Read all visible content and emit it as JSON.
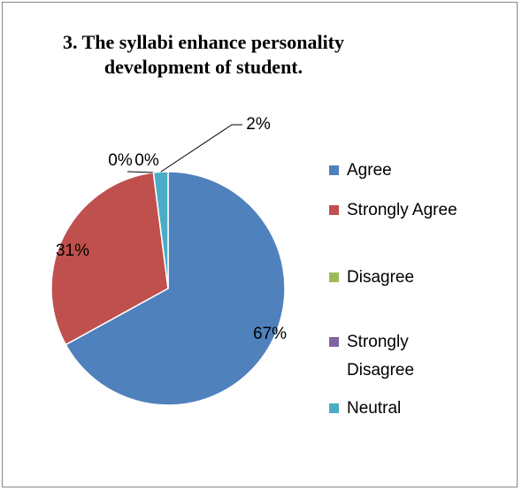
{
  "chart_data": {
    "type": "pie",
    "title": "3. The syllabi enhance personality development of student.",
    "categories": [
      "Agree",
      "Strongly Agree",
      "Disagree",
      "Strongly Disagree",
      "Neutral"
    ],
    "values": [
      67,
      31,
      0,
      0,
      2
    ],
    "value_labels": [
      "67%",
      "31%",
      "0%",
      "0%",
      "2%"
    ],
    "colors": [
      "#4f81bd",
      "#c0504d",
      "#9bbb59",
      "#8064a2",
      "#4bacc6"
    ],
    "legend": "right"
  }
}
